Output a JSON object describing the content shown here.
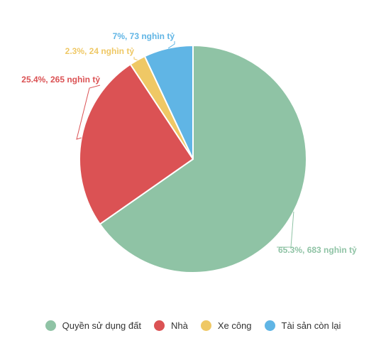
{
  "chart_data": {
    "type": "pie",
    "title": "",
    "slices": [
      {
        "name": "Quyền sử dụng đất",
        "value": 65.3,
        "label": "65.3%, 683 nghìn tỷ",
        "color": "#8fc3a5"
      },
      {
        "name": "Nhà",
        "value": 25.4,
        "label": "25.4%, 265 nghìn tỷ",
        "color": "#db5254"
      },
      {
        "name": "Xe công",
        "value": 2.3,
        "label": "2.3%, 24 nghìn tỷ",
        "color": "#efc865"
      },
      {
        "name": "Tài sản còn lại",
        "value": 7,
        "label": "7%, 73 nghìn tỷ",
        "color": "#60b5e5"
      }
    ],
    "legend_position": "bottom"
  }
}
